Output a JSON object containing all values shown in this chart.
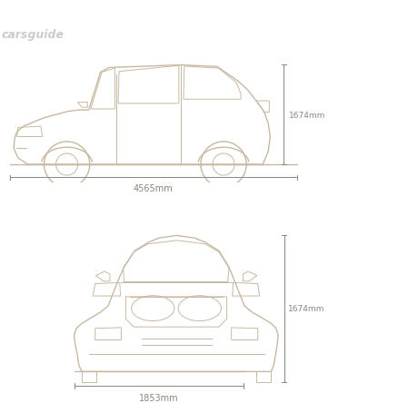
{
  "bg_color": "#ffffff",
  "line_color": "#c8b8a2",
  "dim_color": "#888880",
  "watermark": "carsguide",
  "watermark_color": "#cccccc",
  "height_mm": "1674mm",
  "width_mm": "1853mm",
  "length_mm": "4565mm",
  "fig_width": 4.38,
  "fig_height": 4.44,
  "dpi": 100
}
